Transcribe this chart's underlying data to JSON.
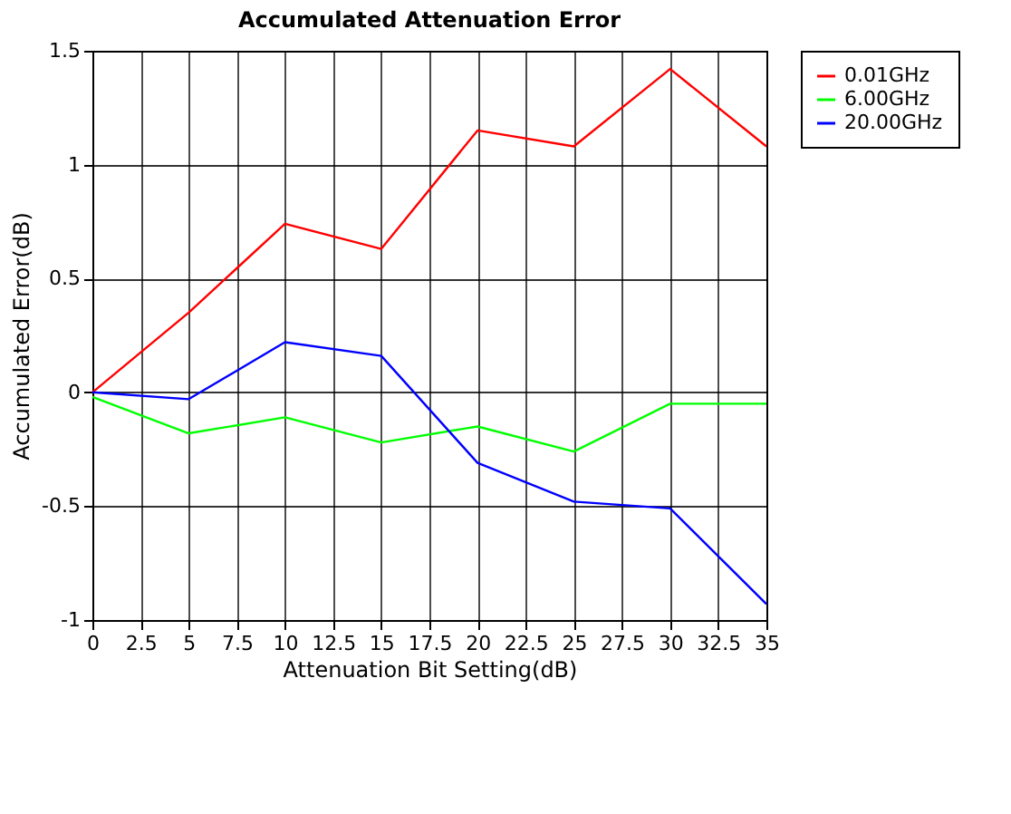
{
  "chart_data": {
    "type": "line",
    "title": "Accumulated Attenuation Error",
    "xlabel": "Attenuation Bit Setting(dB)",
    "ylabel": "Accumulated Error(dB)",
    "x": [
      0,
      5,
      10,
      15,
      20,
      25,
      30,
      35
    ],
    "series": [
      {
        "name": "0.01GHz",
        "color": "#ff0000",
        "values": [
          0,
          0.35,
          0.74,
          0.63,
          1.15,
          1.08,
          1.42,
          1.08
        ]
      },
      {
        "name": "6.00GHz",
        "color": "#00ff00",
        "values": [
          -0.02,
          -0.18,
          -0.11,
          -0.22,
          -0.15,
          -0.26,
          -0.05,
          -0.05
        ]
      },
      {
        "name": "20.00GHz",
        "color": "#0000ff",
        "values": [
          0,
          -0.03,
          0.22,
          0.16,
          -0.31,
          -0.48,
          -0.51,
          -0.93
        ]
      }
    ],
    "xlim": [
      0,
      35
    ],
    "xticks": [
      0,
      2.5,
      5,
      7.5,
      10,
      12.5,
      15,
      17.5,
      20,
      22.5,
      25,
      27.5,
      30,
      32.5,
      35
    ],
    "ylim": [
      -1,
      1.5
    ],
    "yticks": [
      -1,
      -0.5,
      0,
      0.5,
      1,
      1.5
    ],
    "grid": true,
    "legend": "top right",
    "marker": "none",
    "line_style": "solid"
  }
}
